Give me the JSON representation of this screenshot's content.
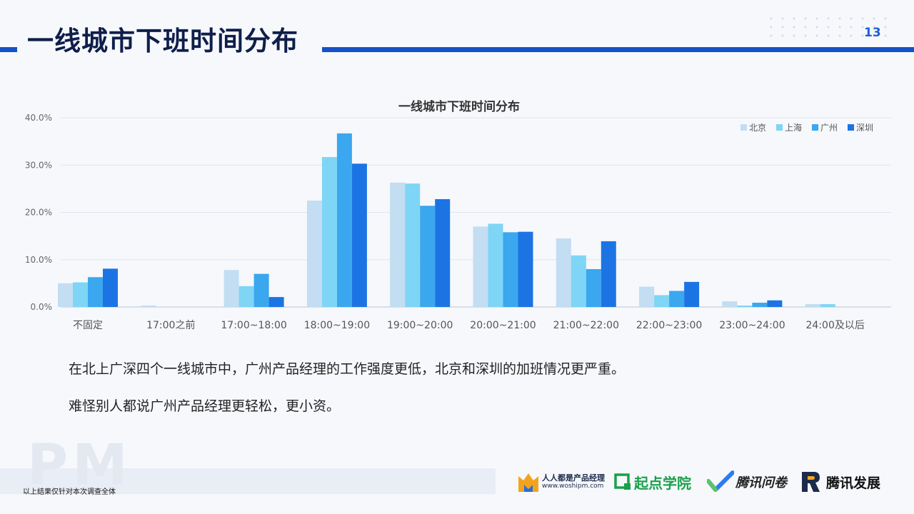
{
  "page": {
    "title": "一线城市下班时间分布",
    "page_number": "13"
  },
  "paragraphs": [
    "在北上广深四个一线城市中，广州产品经理的工作强度更低，北京和深圳的加班情况更严重。",
    "难怪别人都说广州产品经理更轻松，更小资。"
  ],
  "footnote": "以上结果仅针对本次调查全体",
  "watermark": "PM",
  "logos": {
    "woshipm": {
      "name": "人人都是产品经理",
      "url": "www.woshipm.com"
    },
    "qidian": {
      "name": "起点学院"
    },
    "wenjuan": {
      "name": "腾讯问卷"
    },
    "fazhan": {
      "name": "腾讯发展"
    }
  },
  "colors": {
    "accent": "#1451c8",
    "beijing": "#c3ddf2",
    "shanghai": "#7fd5f5",
    "guangzhou": "#3aa7ef",
    "shenzhen": "#1c74e4"
  },
  "chart_data": {
    "type": "bar",
    "title": "一线城市下班时间分布",
    "categories": [
      "不固定",
      "17:00之前",
      "17:00~18:00",
      "18:00~19:00",
      "19:00~20:00",
      "20:00~21:00",
      "21:00~22:00",
      "22:00~23:00",
      "23:00~24:00",
      "24:00及以后"
    ],
    "series": [
      {
        "name": "北京",
        "values": [
          5.0,
          0.3,
          7.8,
          22.5,
          26.3,
          17.0,
          14.5,
          4.3,
          1.2,
          0.6
        ]
      },
      {
        "name": "上海",
        "values": [
          5.2,
          0.0,
          4.4,
          31.7,
          26.1,
          17.6,
          10.9,
          2.5,
          0.3,
          0.6
        ]
      },
      {
        "name": "广州",
        "values": [
          6.3,
          0.0,
          7.0,
          36.7,
          21.4,
          15.8,
          8.0,
          3.4,
          0.9,
          0.0
        ]
      },
      {
        "name": "深圳",
        "values": [
          8.1,
          0.0,
          2.1,
          30.3,
          22.8,
          15.9,
          13.9,
          5.3,
          1.4,
          0.0
        ]
      }
    ],
    "ylim": [
      0,
      40
    ],
    "yticks": [
      "0.0%",
      "10.0%",
      "20.0%",
      "30.0%",
      "40.0%"
    ],
    "grid": true,
    "legend_position": "top-right"
  }
}
